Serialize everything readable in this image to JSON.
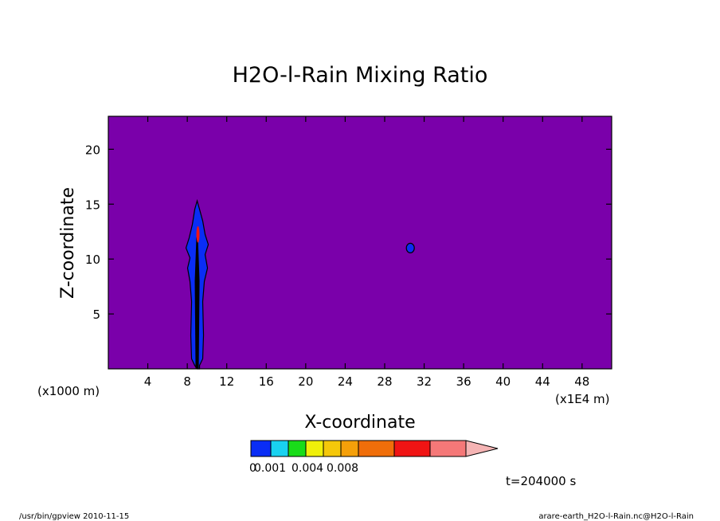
{
  "chart_data": {
    "type": "contour",
    "title": "H2O-l-Rain Mixing Ratio",
    "xlabel": "X-coordinate",
    "ylabel": "Z-coordinate",
    "x_unit_left": "(x1000 m)",
    "x_unit_right": "(x1E4 m)",
    "xlim": [
      0,
      51
    ],
    "ylim": [
      0,
      23
    ],
    "x_ticks": [
      4,
      8,
      12,
      16,
      20,
      24,
      28,
      32,
      36,
      40,
      44,
      48
    ],
    "y_ticks": [
      5,
      10,
      15,
      20
    ],
    "background_color": "#7a00aa",
    "colorbar": {
      "colors": [
        "#0a2df5",
        "#19d2f0",
        "#19dc19",
        "#f0f00a",
        "#f5c80a",
        "#f5a00a",
        "#f06e0a",
        "#f01414",
        "#f57878"
      ],
      "extend_color": "#f5b4b4",
      "labels": [
        {
          "text": "0.001",
          "at": 0
        },
        {
          "text": "0.004",
          "at": 2
        },
        {
          "text": "0.008",
          "at": 4
        }
      ],
      "label_prefix": "0"
    },
    "features": [
      {
        "name": "rain-column",
        "x": 9,
        "z_range": [
          0,
          15.3
        ],
        "fill": "#0a2df5"
      },
      {
        "name": "rain-core",
        "x": 9,
        "z_range": [
          11.5,
          13
        ],
        "fill": "#f01414"
      },
      {
        "name": "rain-blob",
        "x": 30.6,
        "z": 11,
        "fill": "#0a2df5"
      }
    ]
  },
  "annotation": {
    "time": "t=204000 s",
    "footer_left": "/usr/bin/gpview  2010-11-15",
    "footer_right": "arare-earth_H2O-l-Rain.nc@H2O-l-Rain"
  }
}
